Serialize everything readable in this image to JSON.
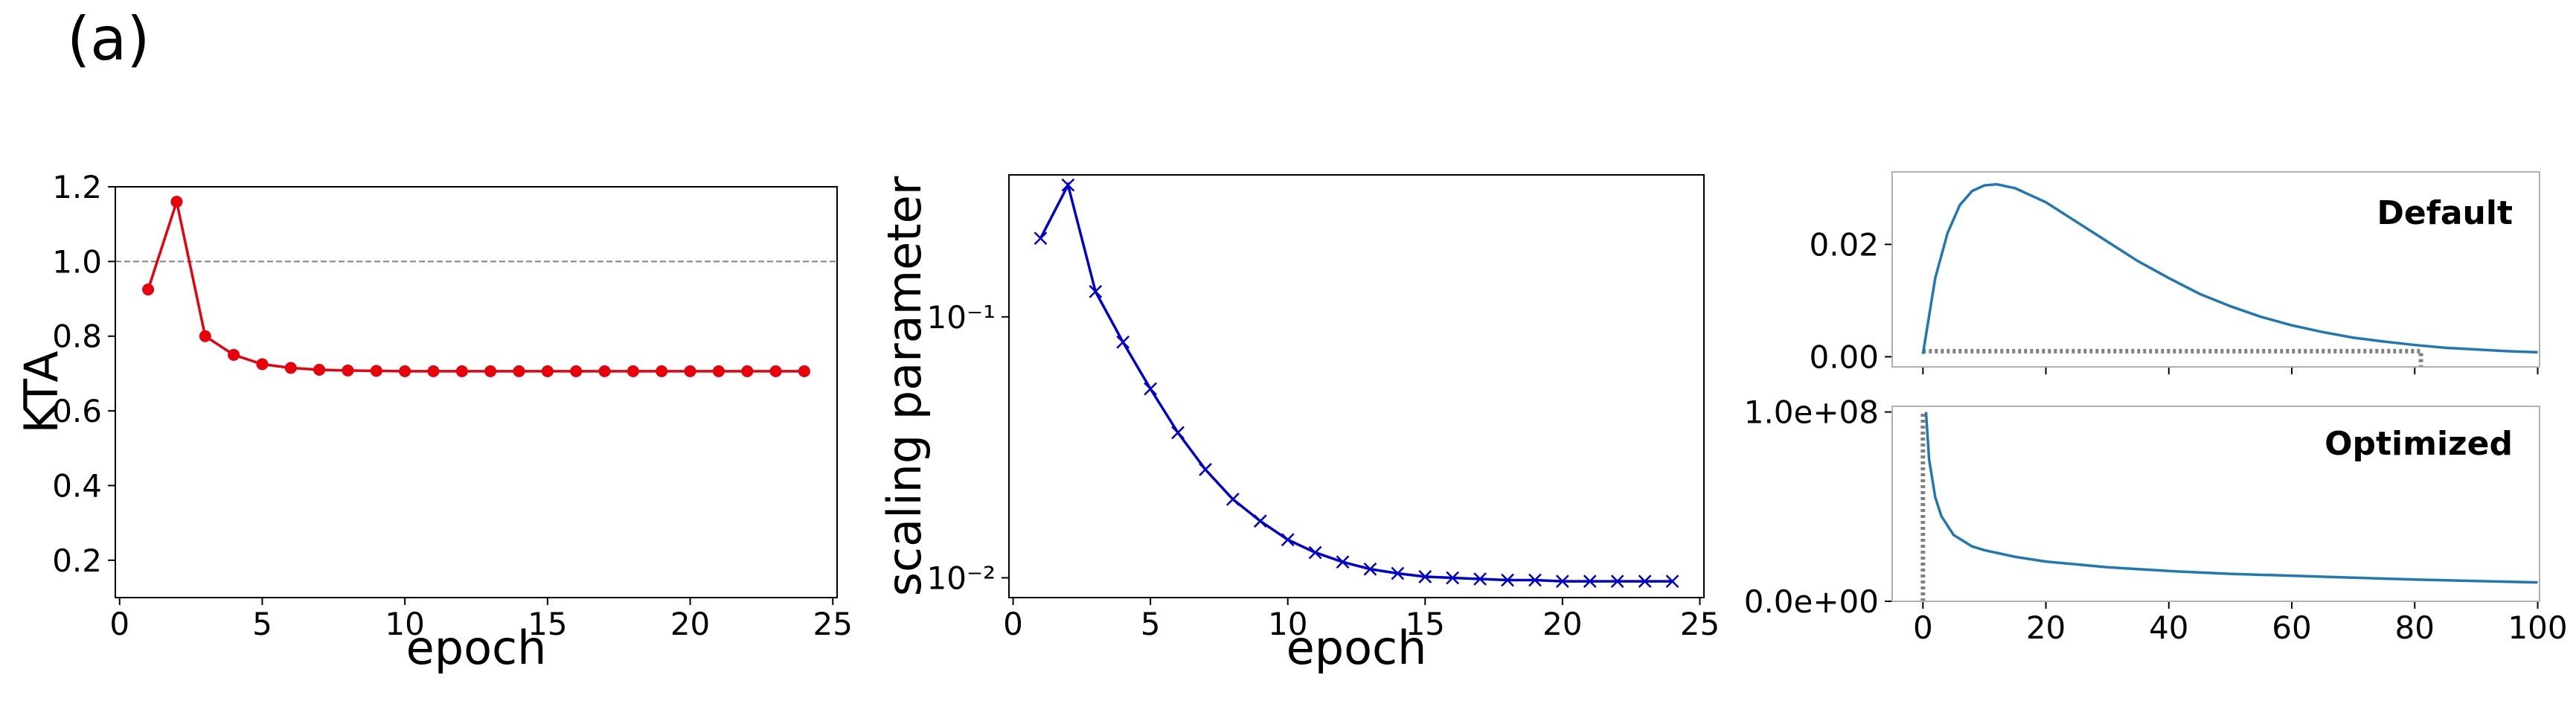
{
  "panel_label": "(a)",
  "chart_data": [
    {
      "type": "line",
      "xlabel": "epoch",
      "ylabel": "KTA",
      "x": [
        1,
        2,
        3,
        4,
        5,
        6,
        7,
        8,
        9,
        10,
        11,
        12,
        13,
        14,
        15,
        16,
        17,
        18,
        19,
        20,
        21,
        22,
        23,
        24
      ],
      "series": [
        {
          "color": "#e8000b",
          "marker": "o",
          "values": [
            0.925,
            1.16,
            0.8,
            0.75,
            0.725,
            0.715,
            0.71,
            0.708,
            0.707,
            0.706,
            0.706,
            0.706,
            0.706,
            0.706,
            0.706,
            0.706,
            0.706,
            0.706,
            0.706,
            0.706,
            0.706,
            0.706,
            0.706,
            0.706
          ]
        }
      ],
      "xlim": [
        -0.15,
        25.15
      ],
      "ylim": [
        0.1,
        1.2
      ],
      "xticks": [
        0,
        5,
        10,
        15,
        20,
        25
      ],
      "yticks": [
        0.2,
        0.4,
        0.6,
        0.8,
        {
          "value": 1,
          "label": "1.0"
        },
        1.2
      ],
      "hline": 1,
      "hline_color": "#808080"
    },
    {
      "type": "line",
      "xlabel": "epoch",
      "ylabel": "scaling parameter",
      "yscale": "log",
      "x": [
        1,
        2,
        3,
        4,
        5,
        6,
        7,
        8,
        9,
        10,
        11,
        12,
        13,
        14,
        15,
        16,
        17,
        18,
        19,
        20,
        21,
        22,
        23,
        24
      ],
      "series": [
        {
          "color": "#0000d0",
          "marker": "x",
          "values": [
            0.2,
            0.32,
            0.125,
            0.08,
            0.053,
            0.036,
            0.026,
            0.02,
            0.0165,
            0.014,
            0.0125,
            0.0115,
            0.0108,
            0.0104,
            0.0101,
            0.01,
            0.0099,
            0.0098,
            0.0098,
            0.0097,
            0.0097,
            0.0097,
            0.0097,
            0.0097
          ]
        }
      ],
      "xlim": [
        -0.15,
        25.15
      ],
      "ylim": [
        0.0084,
        0.35
      ],
      "xticks": [
        0,
        5,
        10,
        15,
        20,
        25
      ],
      "yticks": [
        {
          "value": 0.01,
          "label": "10⁻²"
        },
        {
          "value": 0.1,
          "label": "10⁻¹"
        }
      ]
    },
    {
      "type": "line",
      "annotation": "Default",
      "x": [
        0,
        2,
        4,
        6,
        8,
        10,
        12,
        15,
        20,
        25,
        30,
        35,
        40,
        45,
        50,
        55,
        60,
        65,
        70,
        75,
        80,
        85,
        90,
        95,
        100
      ],
      "series": [
        {
          "color": "#1f77b4",
          "values": [
            0.0005,
            0.014,
            0.022,
            0.027,
            0.0295,
            0.0305,
            0.0307,
            0.03,
            0.0275,
            0.024,
            0.0205,
            0.017,
            0.014,
            0.0112,
            0.009,
            0.0071,
            0.0056,
            0.0044,
            0.0034,
            0.0027,
            0.0021,
            0.0016,
            0.0013,
            0.001,
            0.0008
          ]
        }
      ],
      "xlim": [
        -5,
        100.3
      ],
      "ylim": [
        -0.0018,
        0.0329
      ],
      "xticks": [
        0,
        20,
        40,
        60,
        80,
        100
      ],
      "xticklabels": false,
      "yticks": [
        {
          "value": 0,
          "label": "0.00"
        },
        {
          "value": 0.02,
          "label": "0.02"
        }
      ],
      "guides": [
        {
          "x": [
            0,
            81,
            81
          ],
          "y": [
            0.001,
            0.001,
            -0.0018
          ],
          "color": "#808080"
        }
      ]
    },
    {
      "type": "line",
      "annotation": "Optimized",
      "x": [
        0.5,
        1,
        2,
        3,
        5,
        8,
        10,
        15,
        20,
        30,
        40,
        50,
        60,
        70,
        80,
        90,
        100
      ],
      "series": [
        {
          "color": "#1f77b4",
          "values": [
            100000000,
            75000000,
            55000000,
            45000000,
            35000000,
            29000000,
            27000000,
            23500000,
            21000000,
            18000000,
            16000000,
            14500000,
            13500000,
            12500000,
            11500000,
            10700000,
            10000000
          ]
        }
      ],
      "xlim": [
        -5,
        100.3
      ],
      "ylim": [
        0,
        103000000
      ],
      "xticks": [
        0,
        20,
        40,
        60,
        80,
        100
      ],
      "yticks": [
        {
          "value": 0,
          "label": "0.0e+00"
        },
        {
          "value": 100000000,
          "label": "1.0e+08"
        }
      ],
      "guides": [
        {
          "x": [
            0,
            0
          ],
          "y": [
            0,
            100000000
          ],
          "color": "#808080"
        }
      ]
    }
  ]
}
